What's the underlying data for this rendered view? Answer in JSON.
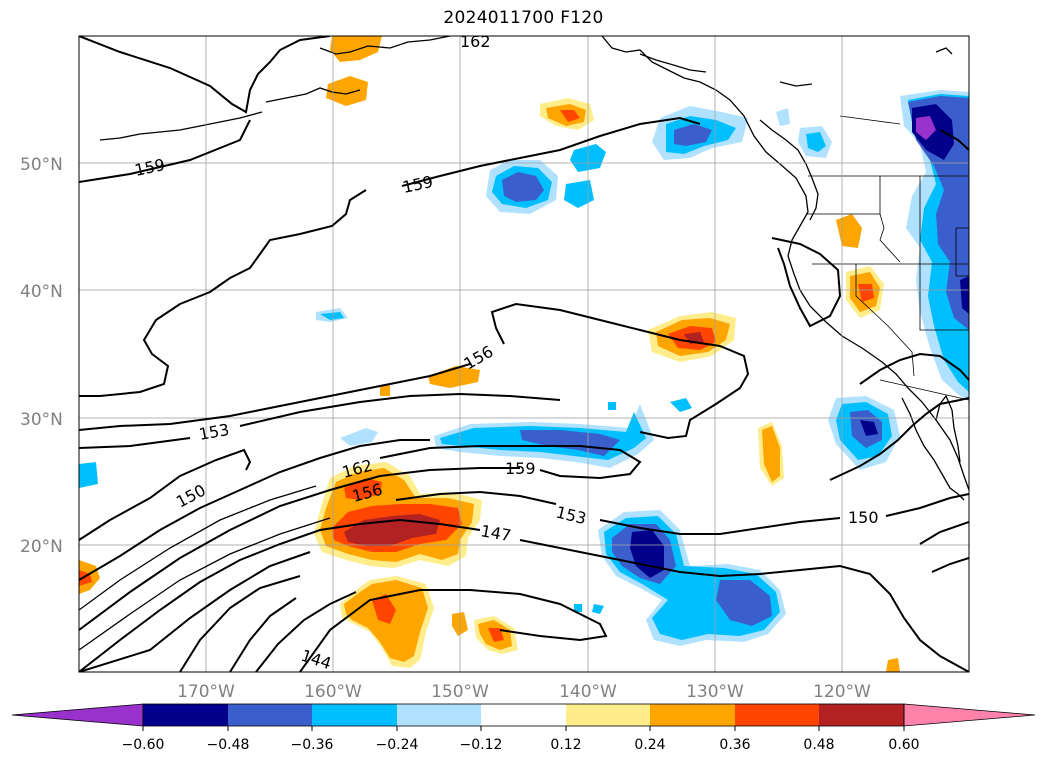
{
  "title": "2024011700 F120",
  "map": {
    "projection": "PlateCarree",
    "lon_range": [
      -180,
      -110
    ],
    "lat_range": [
      10,
      60
    ],
    "gridlines": true,
    "lat_labels": [
      "50°N",
      "40°N",
      "30°N",
      "20°N"
    ],
    "lon_labels": [
      "170°W",
      "160°W",
      "150°W",
      "140°W",
      "130°W",
      "120°W"
    ]
  },
  "contour_labels": [
    "162",
    "159",
    "159",
    "156",
    "153",
    "150",
    "162",
    "156",
    "159",
    "147",
    "153",
    "150",
    "144"
  ],
  "colorbar": {
    "ticks": [
      "−0.60",
      "−0.48",
      "−0.36",
      "−0.24",
      "−0.12",
      "0.12",
      "0.24",
      "0.36",
      "0.48",
      "0.60"
    ],
    "colors": {
      "min_extend": "#9932CC",
      "c1": "#00008B",
      "c2": "#3A5FCD",
      "c3": "#00BFFF",
      "c4": "#B0E2FF",
      "c5": "#FFFFFF",
      "c6": "#FFEC8B",
      "c7": "#FFA500",
      "c8": "#FF4500",
      "c9": "#B22222",
      "max_extend": "#FF82AB"
    }
  }
}
